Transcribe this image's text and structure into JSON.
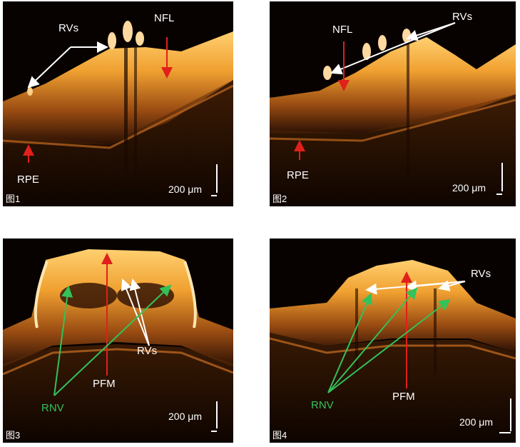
{
  "colors": {
    "arrow_white": "#ffffff",
    "arrow_red": "#e0201a",
    "arrow_green": "#33c25a",
    "tissue": "#f0a030"
  },
  "panels": [
    {
      "id": "1",
      "fig_label": "图1",
      "scale": "200 μm",
      "labels": {
        "rvs": "RVs",
        "nfl": "NFL",
        "rpe": "RPE"
      }
    },
    {
      "id": "2",
      "fig_label": "图2",
      "scale": "200 μm",
      "labels": {
        "rvs": "RVs",
        "nfl": "NFL",
        "rpe": "RPE"
      }
    },
    {
      "id": "3",
      "fig_label": "图3",
      "scale": "200 μm",
      "labels": {
        "rvs": "RVs",
        "pfm": "PFM",
        "rnv": "RNV"
      }
    },
    {
      "id": "4",
      "fig_label": "图4",
      "scale": "200 μm",
      "labels": {
        "rvs": "RVs",
        "pfm": "PFM",
        "rnv": "RNV"
      }
    }
  ]
}
